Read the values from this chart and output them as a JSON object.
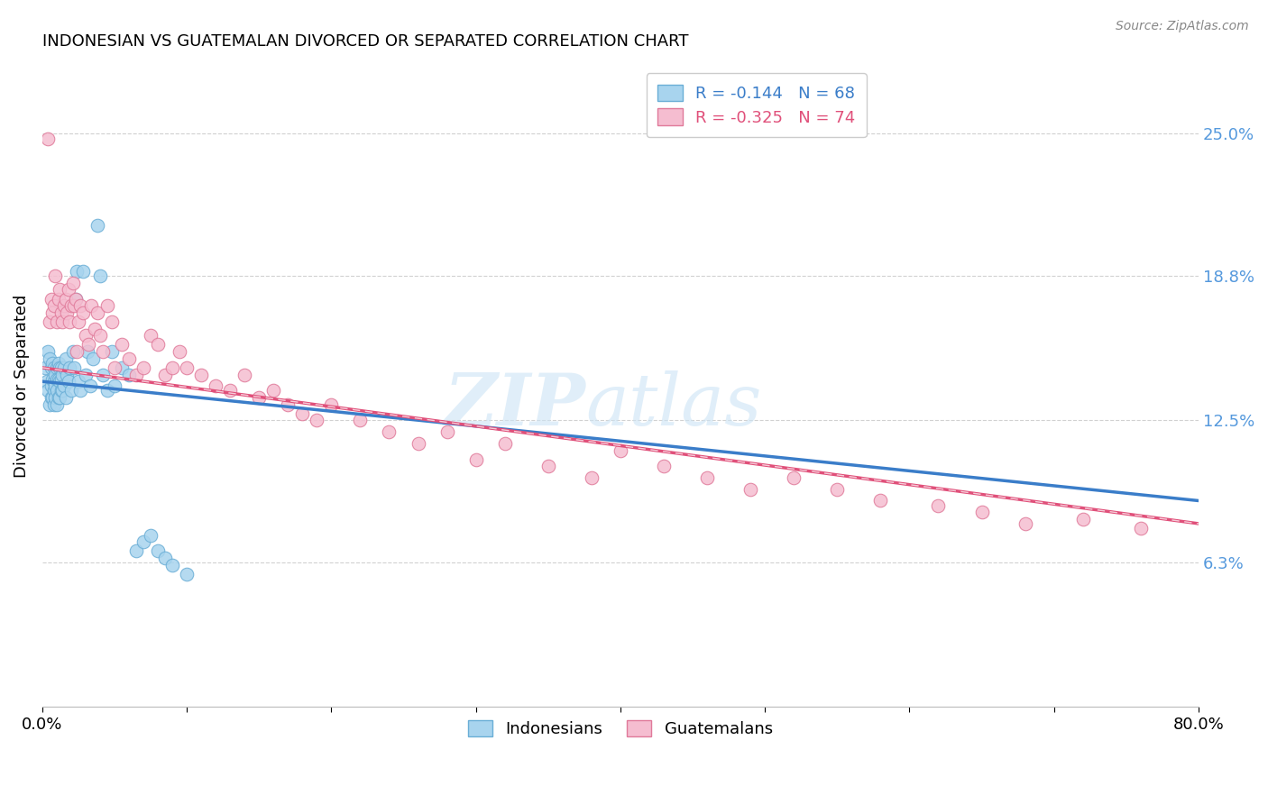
{
  "title": "INDONESIAN VS GUATEMALAN DIVORCED OR SEPARATED CORRELATION CHART",
  "source": "Source: ZipAtlas.com",
  "ylabel": "Divorced or Separated",
  "ytick_labels": [
    "25.0%",
    "18.8%",
    "12.5%",
    "6.3%"
  ],
  "ytick_values": [
    0.25,
    0.188,
    0.125,
    0.063
  ],
  "xlim": [
    0.0,
    0.8
  ],
  "ylim": [
    0.0,
    0.28
  ],
  "legend_line1": "R = -0.144   N = 68",
  "legend_line2": "R = -0.325   N = 74",
  "legend_label1": "Indonesians",
  "legend_label2": "Guatemalans",
  "color_indonesian_fill": "#a8d4ee",
  "color_indonesian_edge": "#6aaed6",
  "color_guatemalan_fill": "#f5bdd0",
  "color_guatemalan_edge": "#e07a9a",
  "color_line_blue": "#3a7dc9",
  "color_line_pink": "#e0507a",
  "color_ytick": "#5599dd",
  "indonesian_x": [
    0.002,
    0.003,
    0.004,
    0.004,
    0.005,
    0.005,
    0.006,
    0.006,
    0.006,
    0.007,
    0.007,
    0.007,
    0.008,
    0.008,
    0.008,
    0.008,
    0.009,
    0.009,
    0.009,
    0.01,
    0.01,
    0.01,
    0.01,
    0.011,
    0.011,
    0.011,
    0.012,
    0.012,
    0.012,
    0.013,
    0.013,
    0.013,
    0.014,
    0.014,
    0.015,
    0.015,
    0.016,
    0.016,
    0.017,
    0.018,
    0.019,
    0.02,
    0.021,
    0.022,
    0.023,
    0.024,
    0.025,
    0.026,
    0.028,
    0.03,
    0.031,
    0.033,
    0.035,
    0.038,
    0.04,
    0.042,
    0.045,
    0.048,
    0.05,
    0.055,
    0.06,
    0.065,
    0.07,
    0.075,
    0.08,
    0.085,
    0.09,
    0.1
  ],
  "indonesian_y": [
    0.148,
    0.142,
    0.155,
    0.138,
    0.152,
    0.132,
    0.148,
    0.14,
    0.135,
    0.15,
    0.143,
    0.135,
    0.148,
    0.142,
    0.138,
    0.132,
    0.145,
    0.14,
    0.135,
    0.148,
    0.143,
    0.138,
    0.132,
    0.15,
    0.143,
    0.135,
    0.148,
    0.142,
    0.135,
    0.148,
    0.143,
    0.138,
    0.145,
    0.138,
    0.148,
    0.14,
    0.152,
    0.135,
    0.145,
    0.142,
    0.148,
    0.138,
    0.155,
    0.148,
    0.178,
    0.19,
    0.142,
    0.138,
    0.19,
    0.145,
    0.155,
    0.14,
    0.152,
    0.21,
    0.188,
    0.145,
    0.138,
    0.155,
    0.14,
    0.148,
    0.145,
    0.068,
    0.072,
    0.075,
    0.068,
    0.065,
    0.062,
    0.058
  ],
  "guatemalan_x": [
    0.004,
    0.005,
    0.006,
    0.007,
    0.008,
    0.009,
    0.01,
    0.011,
    0.012,
    0.013,
    0.014,
    0.015,
    0.016,
    0.017,
    0.018,
    0.019,
    0.02,
    0.021,
    0.022,
    0.023,
    0.024,
    0.025,
    0.026,
    0.028,
    0.03,
    0.032,
    0.034,
    0.036,
    0.038,
    0.04,
    0.042,
    0.045,
    0.048,
    0.05,
    0.055,
    0.06,
    0.065,
    0.07,
    0.075,
    0.08,
    0.085,
    0.09,
    0.095,
    0.1,
    0.11,
    0.12,
    0.13,
    0.14,
    0.15,
    0.16,
    0.17,
    0.18,
    0.19,
    0.2,
    0.22,
    0.24,
    0.26,
    0.28,
    0.3,
    0.32,
    0.35,
    0.38,
    0.4,
    0.43,
    0.46,
    0.49,
    0.52,
    0.55,
    0.58,
    0.62,
    0.65,
    0.68,
    0.72,
    0.76
  ],
  "guatemalan_y": [
    0.248,
    0.168,
    0.178,
    0.172,
    0.175,
    0.188,
    0.168,
    0.178,
    0.182,
    0.172,
    0.168,
    0.175,
    0.178,
    0.172,
    0.182,
    0.168,
    0.175,
    0.185,
    0.175,
    0.178,
    0.155,
    0.168,
    0.175,
    0.172,
    0.162,
    0.158,
    0.175,
    0.165,
    0.172,
    0.162,
    0.155,
    0.175,
    0.168,
    0.148,
    0.158,
    0.152,
    0.145,
    0.148,
    0.162,
    0.158,
    0.145,
    0.148,
    0.155,
    0.148,
    0.145,
    0.14,
    0.138,
    0.145,
    0.135,
    0.138,
    0.132,
    0.128,
    0.125,
    0.132,
    0.125,
    0.12,
    0.115,
    0.12,
    0.108,
    0.115,
    0.105,
    0.1,
    0.112,
    0.105,
    0.1,
    0.095,
    0.1,
    0.095,
    0.09,
    0.088,
    0.085,
    0.08,
    0.082,
    0.078
  ],
  "trendline_blue_x0": 0.0,
  "trendline_blue_y0": 0.142,
  "trendline_blue_x1": 0.8,
  "trendline_blue_y1": 0.09,
  "trendline_pink_x0": 0.0,
  "trendline_pink_y0": 0.148,
  "trendline_pink_x1": 0.8,
  "trendline_pink_y1": 0.08
}
